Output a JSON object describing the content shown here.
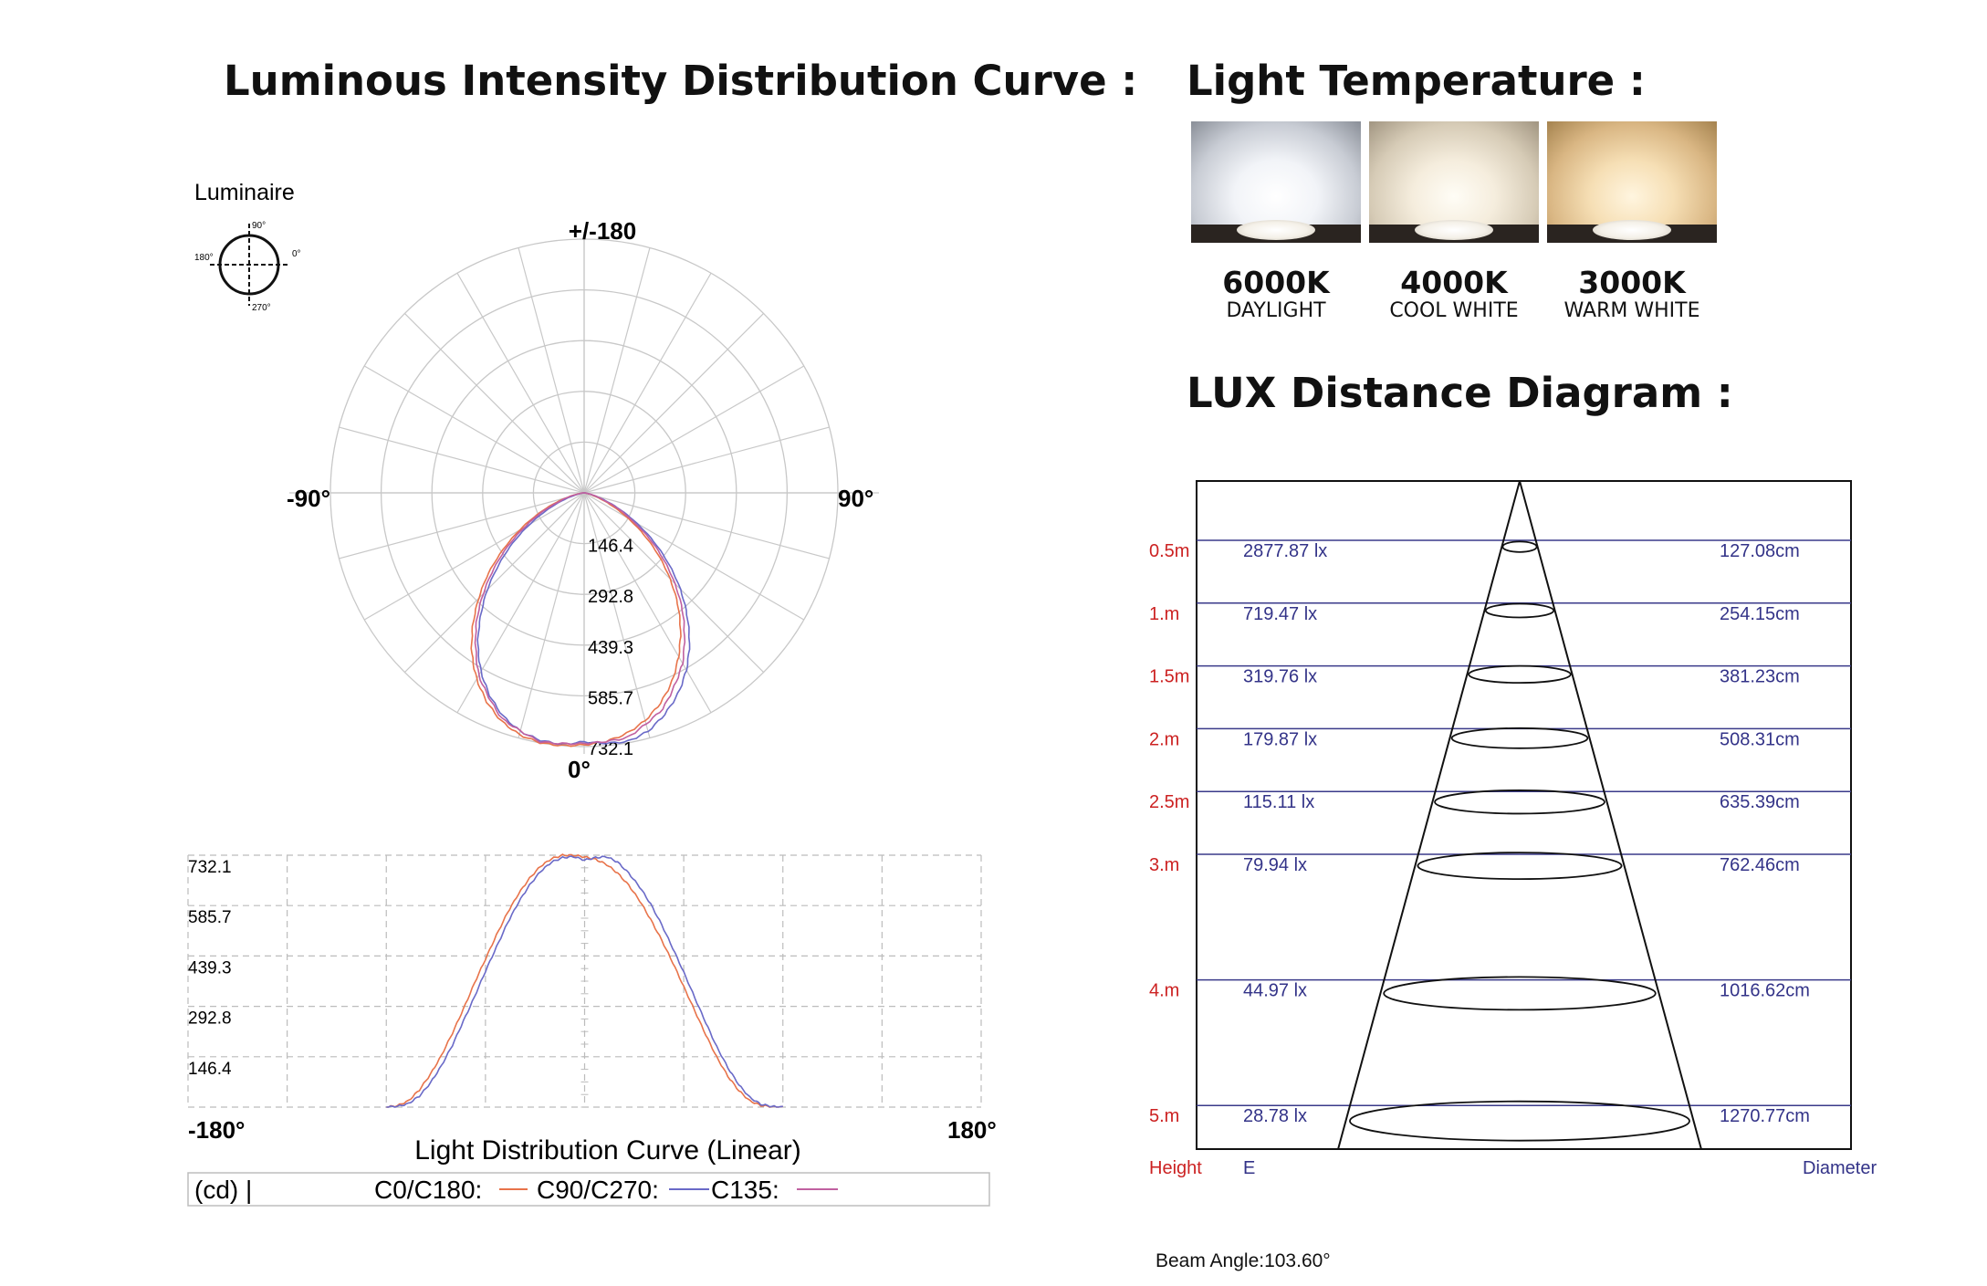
{
  "titles": {
    "lidc": "Luminous Intensity Distribution Curve :",
    "temperature": "Light Temperature :",
    "lux": "LUX Distance Diagram :"
  },
  "temperatures": [
    {
      "k": "6000K",
      "name": "DAYLIGHT",
      "color": "#f2f4f8"
    },
    {
      "k": "4000K",
      "name": "COOL WHITE",
      "color": "#f5eddd"
    },
    {
      "k": "3000K",
      "name": "WARM WHITE",
      "color": "#f6dfb5"
    }
  ],
  "luminaire": {
    "label": "Luminaire",
    "marks": {
      "top": "90°",
      "right": "0°",
      "left": "180°",
      "bottom": "270°"
    }
  },
  "chart_data": [
    {
      "type": "polar",
      "angle_labels": {
        "top": "+/-180",
        "left": "-90°",
        "right": "90°",
        "bottom": "0°"
      },
      "radial_ticks": [
        146.4,
        292.8,
        439.3,
        585.7,
        732.1
      ],
      "rmax": 732.1,
      "series": [
        {
          "name": "C0/C180",
          "color": "#e8734a",
          "angles": [
            -90,
            -85,
            -80,
            -75,
            -70,
            -65,
            -60,
            -55,
            -50,
            -45,
            -40,
            -35,
            -30,
            -25,
            -20,
            -15,
            -10,
            -5,
            0,
            5,
            10,
            15,
            20,
            25,
            30,
            35,
            40,
            45,
            50,
            55,
            60,
            65,
            70,
            75,
            80,
            85,
            90
          ],
          "values": [
            0,
            4,
            18,
            50,
            95,
            150,
            215,
            285,
            360,
            430,
            500,
            565,
            620,
            665,
            700,
            722,
            732,
            732,
            727,
            720,
            705,
            680,
            645,
            600,
            545,
            485,
            420,
            350,
            280,
            210,
            145,
            90,
            48,
            18,
            5,
            1,
            0
          ]
        },
        {
          "name": "C90/C270",
          "color": "#6a6ac8",
          "angles": [
            -90,
            -85,
            -80,
            -75,
            -70,
            -65,
            -60,
            -55,
            -50,
            -45,
            -40,
            -35,
            -30,
            -25,
            -20,
            -15,
            -10,
            -5,
            0,
            5,
            10,
            15,
            20,
            25,
            30,
            35,
            40,
            45,
            50,
            55,
            60,
            65,
            70,
            75,
            80,
            85,
            90
          ],
          "values": [
            0,
            2,
            10,
            32,
            70,
            120,
            180,
            250,
            320,
            395,
            465,
            535,
            595,
            645,
            685,
            712,
            725,
            728,
            718,
            725,
            728,
            712,
            680,
            640,
            590,
            530,
            462,
            392,
            318,
            245,
            175,
            115,
            65,
            28,
            8,
            2,
            0
          ]
        },
        {
          "name": "C135",
          "color": "#c060a0",
          "angles": [
            -90,
            -80,
            -70,
            -60,
            -50,
            -40,
            -30,
            -20,
            -10,
            0,
            10,
            20,
            30,
            40,
            50,
            60,
            70,
            80,
            90
          ],
          "values": [
            0,
            14,
            82,
            198,
            340,
            483,
            608,
            693,
            729,
            723,
            717,
            663,
            568,
            441,
            299,
            160,
            57,
            9,
            0
          ]
        }
      ]
    },
    {
      "type": "line",
      "title": "Light Distribution Curve (Linear)",
      "x_labels": {
        "left": "-180°",
        "right": "180°"
      },
      "xlim": [
        -180,
        180
      ],
      "ylim": [
        0,
        732.1
      ],
      "y_ticks": [
        146.4,
        292.8,
        439.3,
        585.7,
        732.1
      ],
      "legend": {
        "unit": "(cd) |",
        "entries": [
          "C0/C180:",
          "C90/C270:",
          "C135:"
        ]
      }
    },
    {
      "type": "table",
      "headers": {
        "height": "Height",
        "e": "E",
        "diameter": "Diameter"
      },
      "rows": [
        {
          "height": "0.5m",
          "h": 0.5,
          "lux": "2877.87 lx",
          "diameter": "127.08cm"
        },
        {
          "height": "1.m",
          "h": 1.0,
          "lux": "719.47 lx",
          "diameter": "254.15cm"
        },
        {
          "height": "1.5m",
          "h": 1.5,
          "lux": "319.76 lx",
          "diameter": "381.23cm"
        },
        {
          "height": "2.m",
          "h": 2.0,
          "lux": "179.87 lx",
          "diameter": "508.31cm"
        },
        {
          "height": "2.5m",
          "h": 2.5,
          "lux": "115.11 lx",
          "diameter": "635.39cm"
        },
        {
          "height": "3.m",
          "h": 3.0,
          "lux": "79.94 lx",
          "diameter": "762.46cm"
        },
        {
          "height": "4.m",
          "h": 4.0,
          "lux": "44.97 lx",
          "diameter": "1016.62cm"
        },
        {
          "height": "5.m",
          "h": 5.0,
          "lux": "28.78 lx",
          "diameter": "1270.77cm"
        }
      ]
    }
  ],
  "beam_angle": "Beam Angle:103.60°"
}
